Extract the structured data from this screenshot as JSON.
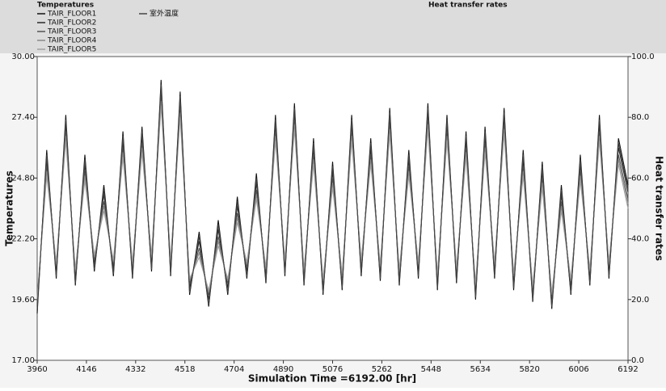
{
  "chart_data": {
    "type": "line",
    "title": "Temperatures",
    "right_title": "Heat transfer rates",
    "xlabel": "Simulation Time =6192.00 [hr]",
    "ylabel": "Temperatures",
    "y2label": "Heat transfer rates",
    "xlim": [
      3960,
      6192
    ],
    "xticks": [
      3960,
      4146,
      4332,
      4518,
      4704,
      4890,
      5076,
      5262,
      5448,
      5634,
      5820,
      6006,
      6192
    ],
    "ylim": [
      17,
      30
    ],
    "yticks": [
      {
        "value": 17,
        "label": "17.00"
      },
      {
        "value": 19.6,
        "label": "19.60"
      },
      {
        "value": 22.2,
        "label": "22.20"
      },
      {
        "value": 24.8,
        "label": "24.80"
      },
      {
        "value": 27.4,
        "label": "27.40"
      },
      {
        "value": 30,
        "label": "30.00"
      }
    ],
    "y2lim": [
      0,
      100
    ],
    "y2ticks": [
      {
        "value": 0,
        "label": "0.0"
      },
      {
        "value": 20,
        "label": "20.0"
      },
      {
        "value": 40,
        "label": "40.0"
      },
      {
        "value": 60,
        "label": "60.0"
      },
      {
        "value": 80,
        "label": "80.0"
      },
      {
        "value": 100,
        "label": "100.0"
      }
    ],
    "grid": false,
    "x": [
      3960,
      3996,
      4032,
      4068,
      4104,
      4140,
      4176,
      4212,
      4248,
      4284,
      4320,
      4356,
      4392,
      4428,
      4464,
      4500,
      4536,
      4572,
      4608,
      4644,
      4680,
      4716,
      4752,
      4788,
      4824,
      4860,
      4896,
      4932,
      4968,
      5004,
      5040,
      5076,
      5112,
      5148,
      5184,
      5220,
      5256,
      5292,
      5328,
      5364,
      5400,
      5436,
      5472,
      5508,
      5544,
      5580,
      5616,
      5652,
      5688,
      5724,
      5760,
      5796,
      5832,
      5868,
      5904,
      5940,
      5976,
      6012,
      6048,
      6084,
      6120,
      6156,
      6192
    ],
    "series": [
      {
        "name": "TAIR_FLOOR1",
        "color": "#111111",
        "values": [
          19.0,
          26.0,
          20.5,
          27.5,
          20.2,
          25.8,
          20.8,
          24.5,
          20.6,
          26.8,
          20.5,
          27.0,
          20.8,
          29.0,
          20.6,
          28.5,
          19.8,
          22.5,
          19.3,
          23.0,
          19.8,
          24.0,
          20.5,
          25.0,
          20.3,
          27.5,
          20.6,
          28.0,
          20.2,
          26.5,
          19.8,
          25.5,
          20.0,
          27.5,
          20.6,
          26.5,
          20.4,
          27.8,
          20.2,
          26.0,
          20.5,
          28.0,
          20.0,
          27.5,
          20.3,
          26.8,
          19.6,
          27.0,
          20.5,
          27.8,
          20.0,
          26.0,
          19.5,
          25.5,
          19.2,
          24.5,
          19.8,
          25.8,
          20.2,
          27.5,
          20.5,
          26.5,
          24.5
        ]
      },
      {
        "name": "TAIR_FLOOR2",
        "color": "#2a2a2a",
        "values": [
          19.3,
          25.6,
          20.8,
          27.1,
          20.5,
          25.4,
          21.1,
          24.1,
          20.9,
          26.4,
          20.8,
          26.6,
          21.1,
          28.6,
          20.9,
          28.1,
          20.1,
          22.1,
          19.6,
          22.6,
          20.1,
          23.6,
          20.8,
          24.6,
          20.6,
          27.1,
          20.9,
          27.6,
          20.5,
          26.1,
          20.1,
          25.1,
          20.3,
          27.1,
          20.9,
          26.1,
          20.7,
          27.4,
          20.5,
          25.6,
          20.8,
          27.6,
          20.3,
          27.1,
          20.6,
          26.4,
          19.9,
          26.6,
          20.8,
          27.4,
          20.3,
          25.6,
          19.8,
          25.1,
          19.5,
          24.1,
          20.1,
          25.4,
          20.5,
          27.1,
          20.8,
          26.1,
          24.2
        ]
      },
      {
        "name": "TAIR_FLOOR3",
        "color": "#555555",
        "values": [
          19.5,
          25.3,
          21.0,
          26.8,
          20.7,
          25.1,
          21.3,
          23.8,
          21.1,
          26.1,
          21.0,
          26.3,
          21.3,
          28.3,
          21.1,
          27.8,
          20.3,
          21.8,
          19.8,
          22.3,
          20.3,
          23.3,
          21.0,
          24.3,
          20.8,
          26.8,
          21.1,
          27.3,
          20.7,
          25.8,
          20.3,
          24.8,
          20.5,
          26.8,
          21.1,
          25.8,
          20.9,
          27.1,
          20.7,
          25.3,
          21.0,
          27.3,
          20.5,
          26.8,
          20.8,
          26.1,
          20.1,
          26.3,
          21.0,
          27.1,
          20.5,
          25.3,
          20.0,
          24.8,
          19.7,
          23.8,
          20.3,
          25.1,
          20.7,
          26.8,
          21.0,
          25.8,
          23.9
        ]
      },
      {
        "name": "TAIR_FLOOR4",
        "color": "#8a8a8a",
        "values": [
          19.6,
          25.1,
          21.1,
          26.6,
          20.8,
          24.9,
          21.4,
          23.6,
          21.2,
          25.9,
          21.1,
          26.1,
          21.4,
          28.1,
          21.2,
          27.6,
          20.4,
          21.6,
          19.9,
          22.1,
          20.4,
          23.1,
          21.1,
          24.1,
          20.9,
          26.6,
          21.2,
          27.1,
          20.8,
          25.6,
          20.4,
          24.6,
          20.6,
          26.6,
          21.2,
          25.6,
          21.0,
          26.9,
          20.8,
          25.1,
          21.1,
          27.1,
          20.6,
          26.6,
          20.9,
          25.9,
          20.2,
          26.1,
          21.1,
          26.9,
          20.6,
          25.1,
          20.1,
          24.6,
          19.8,
          23.6,
          20.4,
          24.9,
          20.8,
          26.6,
          21.1,
          25.6,
          23.7
        ]
      },
      {
        "name": "TAIR_FLOOR5",
        "color": "#a0a0a0",
        "values": [
          19.7,
          24.9,
          21.2,
          26.4,
          20.9,
          24.7,
          21.5,
          23.4,
          21.3,
          25.7,
          21.2,
          25.9,
          21.5,
          27.9,
          21.3,
          27.4,
          20.5,
          21.4,
          20.0,
          21.9,
          20.5,
          22.9,
          21.2,
          23.9,
          21.0,
          26.4,
          21.3,
          26.9,
          20.9,
          25.4,
          20.5,
          24.4,
          20.7,
          26.4,
          21.3,
          25.4,
          21.1,
          26.7,
          20.9,
          24.9,
          21.2,
          26.9,
          20.7,
          26.4,
          21.0,
          25.7,
          20.3,
          25.9,
          21.2,
          26.7,
          20.7,
          24.9,
          20.2,
          24.4,
          19.9,
          23.4,
          20.5,
          24.7,
          20.9,
          26.4,
          21.2,
          25.4,
          23.5
        ]
      },
      {
        "name": "室外温度",
        "color": "#444444",
        "values": [
          19.2,
          25.8,
          20.6,
          27.3,
          20.3,
          25.6,
          20.9,
          24.3,
          20.7,
          26.6,
          20.6,
          26.8,
          20.9,
          28.8,
          20.7,
          28.3,
          19.9,
          22.3,
          19.4,
          22.8,
          19.9,
          23.8,
          20.6,
          24.8,
          20.4,
          27.3,
          20.7,
          27.8,
          20.3,
          26.3,
          19.9,
          25.3,
          20.1,
          27.3,
          20.7,
          26.3,
          20.5,
          27.6,
          20.3,
          25.8,
          20.6,
          27.8,
          20.1,
          27.3,
          20.4,
          26.6,
          19.7,
          26.8,
          20.6,
          27.6,
          20.1,
          25.8,
          19.6,
          25.3,
          19.3,
          24.3,
          19.9,
          25.6,
          20.3,
          27.3,
          20.6,
          26.3,
          24.3
        ]
      }
    ]
  }
}
